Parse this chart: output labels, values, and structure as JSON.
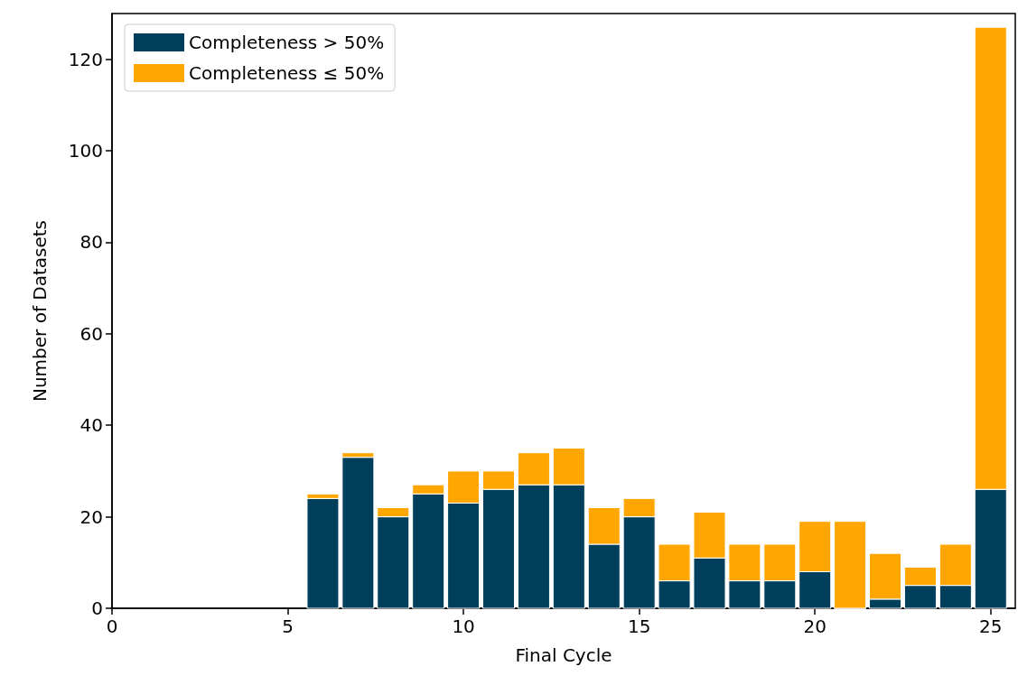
{
  "chart_data": {
    "type": "bar",
    "xlabel": "Final Cycle",
    "ylabel": "Number of Datasets",
    "x": [
      6,
      7,
      8,
      9,
      10,
      11,
      12,
      13,
      14,
      15,
      16,
      17,
      18,
      19,
      20,
      21,
      22,
      23,
      24,
      25
    ],
    "series": [
      {
        "name": "Completeness > 50%",
        "color": "#003f5c",
        "values": [
          24,
          33,
          20,
          25,
          23,
          26,
          27,
          27,
          14,
          20,
          6,
          11,
          6,
          6,
          8,
          0,
          2,
          5,
          5,
          26
        ]
      },
      {
        "name": "Completeness ≤ 50%",
        "color": "#ffa600",
        "values": [
          1,
          1,
          2,
          2,
          7,
          4,
          7,
          8,
          8,
          4,
          8,
          10,
          8,
          8,
          11,
          19,
          10,
          4,
          9,
          101
        ]
      }
    ],
    "stacked": true,
    "xlim": [
      0,
      25.7
    ],
    "xticks": [
      0,
      5,
      10,
      15,
      20,
      25
    ],
    "ylim": [
      0,
      130
    ],
    "yticks": [
      0,
      20,
      40,
      60,
      80,
      100,
      120
    ],
    "grid": false,
    "legend": "top left"
  }
}
